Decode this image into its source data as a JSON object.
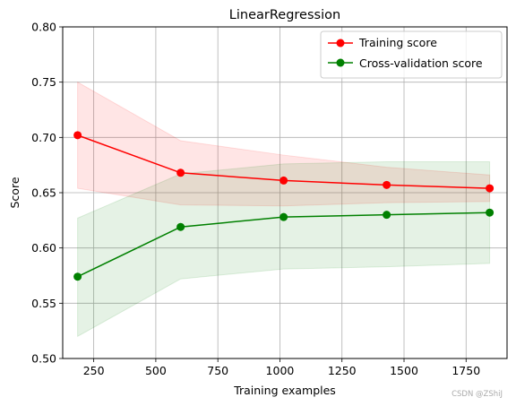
{
  "chart_data": {
    "type": "line",
    "title": "LinearRegression",
    "xlabel": "Training examples",
    "ylabel": "Score",
    "xlim": [
      125,
      1915
    ],
    "ylim": [
      0.5,
      0.8
    ],
    "x_ticks": [
      250,
      500,
      750,
      1000,
      1250,
      1500,
      1750
    ],
    "y_ticks": [
      0.5,
      0.55,
      0.6,
      0.65,
      0.7,
      0.75,
      0.8
    ],
    "grid": true,
    "legend_position": "top-right",
    "x": [
      185,
      600,
      1015,
      1430,
      1845
    ],
    "series": [
      {
        "name": "Training score",
        "color": "#ff0000",
        "values": [
          0.702,
          0.668,
          0.661,
          0.657,
          0.654
        ],
        "band_upper": [
          0.75,
          0.697,
          0.684,
          0.673,
          0.666
        ],
        "band_lower": [
          0.654,
          0.639,
          0.638,
          0.641,
          0.642
        ]
      },
      {
        "name": "Cross-validation score",
        "color": "#008000",
        "values": [
          0.574,
          0.619,
          0.628,
          0.63,
          0.632
        ],
        "band_upper": [
          0.627,
          0.667,
          0.676,
          0.678,
          0.678
        ],
        "band_lower": [
          0.52,
          0.572,
          0.581,
          0.583,
          0.586
        ]
      }
    ]
  },
  "watermark": "CSDN @ZShiJ"
}
